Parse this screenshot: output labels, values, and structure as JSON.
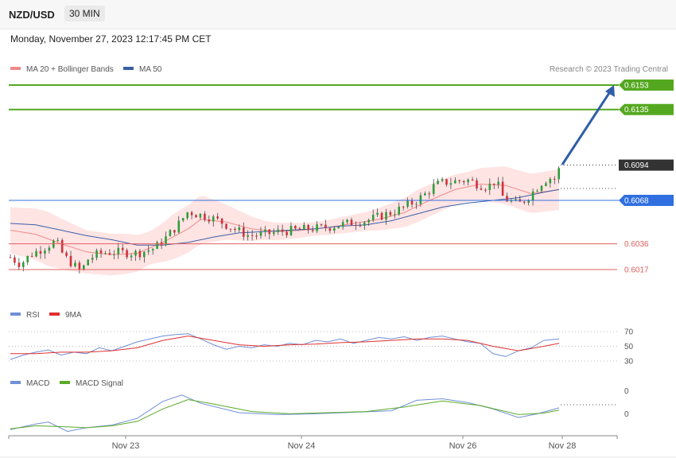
{
  "header": {
    "symbol": "NZD/USD",
    "timeframe": "30 MIN"
  },
  "datetime": "Monday, November 27, 2023 12:17:45 PM CET",
  "legend": {
    "ma20": "MA 20 + Bollinger Bands",
    "ma50": "MA 50",
    "rsi": "RSI",
    "rsi_ma": "9MA",
    "macd": "MACD",
    "macd_signal": "MACD Signal"
  },
  "credit": "Research © 2023 Trading Central",
  "colors": {
    "up": "#2e9e3a",
    "down": "#d0333a",
    "ma50": "#3a5fa8",
    "band": "#ffd9d9",
    "resistance": "#54a820",
    "pivot": "#2f6fe0",
    "support": "#e06060",
    "arrow": "#2f5ea8",
    "rsi": "#6f8fd8",
    "rsi_ma": "#e03030",
    "macd": "#6f8fd8",
    "macd_signal": "#5aaa28"
  },
  "chart_data": {
    "type": "candlestick",
    "title": "NZD/USD",
    "timeframe": "30 MIN",
    "x_tick_labels": [
      "Nov 23",
      "Nov 24",
      "Nov 26",
      "Nov 28"
    ],
    "y_range": [
      0.6005,
      0.616
    ],
    "last_price": 0.6094,
    "levels": [
      {
        "label": "0.6153",
        "value": 0.6153,
        "kind": "resistance"
      },
      {
        "label": "0.6135",
        "value": 0.6135,
        "kind": "resistance"
      },
      {
        "label": "0.6094",
        "value": 0.6094,
        "kind": "last"
      },
      {
        "label": "0.6068",
        "value": 0.6068,
        "kind": "pivot"
      },
      {
        "label": "0.6036",
        "value": 0.6036,
        "kind": "support"
      },
      {
        "label": "0.6017",
        "value": 0.6017,
        "kind": "support"
      }
    ],
    "price_path": [
      [
        0,
        0.6026
      ],
      [
        8,
        0.6021
      ],
      [
        16,
        0.6028
      ],
      [
        24,
        0.6032
      ],
      [
        30,
        0.6035
      ],
      [
        36,
        0.6038
      ],
      [
        42,
        0.6027
      ],
      [
        48,
        0.6022
      ],
      [
        56,
        0.6015
      ],
      [
        60,
        0.6024
      ],
      [
        66,
        0.6027
      ],
      [
        70,
        0.6029
      ],
      [
        80,
        0.603
      ],
      [
        100,
        0.6029
      ],
      [
        114,
        0.6033
      ],
      [
        122,
        0.604
      ],
      [
        132,
        0.605
      ],
      [
        140,
        0.606
      ],
      [
        146,
        0.6058
      ],
      [
        156,
        0.6056
      ],
      [
        166,
        0.6052
      ],
      [
        176,
        0.6047
      ],
      [
        188,
        0.6042
      ],
      [
        200,
        0.6043
      ],
      [
        212,
        0.6045
      ],
      [
        224,
        0.6046
      ],
      [
        236,
        0.6047
      ],
      [
        248,
        0.6048
      ],
      [
        260,
        0.605
      ],
      [
        270,
        0.6052
      ],
      [
        280,
        0.6053
      ],
      [
        290,
        0.6056
      ],
      [
        300,
        0.6059
      ],
      [
        310,
        0.6063
      ],
      [
        318,
        0.6067
      ],
      [
        326,
        0.6072
      ],
      [
        334,
        0.6079
      ],
      [
        340,
        0.6081
      ],
      [
        350,
        0.6082
      ],
      [
        360,
        0.6083
      ],
      [
        368,
        0.608
      ],
      [
        376,
        0.6078
      ],
      [
        382,
        0.6083
      ],
      [
        388,
        0.607
      ],
      [
        394,
        0.6067
      ],
      [
        400,
        0.6065
      ],
      [
        406,
        0.6069
      ],
      [
        412,
        0.6075
      ],
      [
        418,
        0.6081
      ],
      [
        424,
        0.6085
      ],
      [
        428,
        0.6083
      ],
      [
        432,
        0.6091
      ]
    ],
    "ma50_path": [
      [
        0,
        0.6051
      ],
      [
        20,
        0.605
      ],
      [
        40,
        0.6046
      ],
      [
        60,
        0.6042
      ],
      [
        80,
        0.6039
      ],
      [
        100,
        0.6035
      ],
      [
        120,
        0.6035
      ],
      [
        140,
        0.6037
      ],
      [
        160,
        0.6041
      ],
      [
        180,
        0.6044
      ],
      [
        200,
        0.6045
      ],
      [
        220,
        0.6046
      ],
      [
        240,
        0.6047
      ],
      [
        260,
        0.6049
      ],
      [
        280,
        0.605
      ],
      [
        300,
        0.6053
      ],
      [
        320,
        0.6058
      ],
      [
        340,
        0.6063
      ],
      [
        360,
        0.6066
      ],
      [
        380,
        0.6068
      ],
      [
        400,
        0.607
      ],
      [
        420,
        0.6074
      ],
      [
        432,
        0.6076
      ]
    ],
    "ma20_path": [
      [
        0,
        0.6046
      ],
      [
        20,
        0.6043
      ],
      [
        40,
        0.6036
      ],
      [
        60,
        0.603
      ],
      [
        80,
        0.6028
      ],
      [
        100,
        0.6029
      ],
      [
        120,
        0.6037
      ],
      [
        140,
        0.6047
      ],
      [
        150,
        0.6054
      ],
      [
        170,
        0.6052
      ],
      [
        190,
        0.6047
      ],
      [
        210,
        0.6045
      ],
      [
        230,
        0.6046
      ],
      [
        250,
        0.6048
      ],
      [
        270,
        0.6051
      ],
      [
        290,
        0.6054
      ],
      [
        310,
        0.6059
      ],
      [
        330,
        0.6068
      ],
      [
        350,
        0.6076
      ],
      [
        370,
        0.608
      ],
      [
        390,
        0.6079
      ],
      [
        410,
        0.6073
      ],
      [
        432,
        0.6076
      ]
    ],
    "band_width": [
      [
        0,
        0.0017
      ],
      [
        30,
        0.002
      ],
      [
        60,
        0.0016
      ],
      [
        90,
        0.0015
      ],
      [
        110,
        0.0012
      ],
      [
        130,
        0.0017
      ],
      [
        150,
        0.0018
      ],
      [
        170,
        0.0013
      ],
      [
        200,
        0.0007
      ],
      [
        240,
        0.0005
      ],
      [
        280,
        0.0007
      ],
      [
        320,
        0.0012
      ],
      [
        360,
        0.0011
      ],
      [
        390,
        0.0014
      ],
      [
        432,
        0.0015
      ]
    ],
    "rsi": {
      "levels": [
        70,
        50,
        30
      ],
      "series": [
        {
          "name": "RSI",
          "values": [
            [
              0,
              32
            ],
            [
              10,
              38
            ],
            [
              20,
              42
            ],
            [
              30,
              45
            ],
            [
              40,
              38
            ],
            [
              50,
              42
            ],
            [
              60,
              40
            ],
            [
              70,
              48
            ],
            [
              80,
              44
            ],
            [
              90,
              50
            ],
            [
              100,
              56
            ],
            [
              110,
              60
            ],
            [
              120,
              64
            ],
            [
              130,
              66
            ],
            [
              140,
              67
            ],
            [
              150,
              60
            ],
            [
              160,
              52
            ],
            [
              170,
              46
            ],
            [
              180,
              50
            ],
            [
              190,
              48
            ],
            [
              200,
              52
            ],
            [
              210,
              50
            ],
            [
              220,
              54
            ],
            [
              230,
              52
            ],
            [
              240,
              58
            ],
            [
              250,
              56
            ],
            [
              260,
              60
            ],
            [
              270,
              54
            ],
            [
              280,
              58
            ],
            [
              290,
              62
            ],
            [
              300,
              60
            ],
            [
              310,
              63
            ],
            [
              320,
              58
            ],
            [
              330,
              62
            ],
            [
              340,
              64
            ],
            [
              350,
              60
            ],
            [
              360,
              56
            ],
            [
              370,
              54
            ],
            [
              380,
              40
            ],
            [
              390,
              36
            ],
            [
              400,
              44
            ],
            [
              410,
              48
            ],
            [
              420,
              58
            ],
            [
              432,
              60
            ]
          ]
        },
        {
          "name": "9MA",
          "values": [
            [
              0,
              40
            ],
            [
              20,
              40
            ],
            [
              40,
              42
            ],
            [
              60,
              42
            ],
            [
              80,
              44
            ],
            [
              100,
              48
            ],
            [
              120,
              58
            ],
            [
              140,
              64
            ],
            [
              160,
              58
            ],
            [
              180,
              52
            ],
            [
              200,
              50
            ],
            [
              220,
              52
            ],
            [
              240,
              53
            ],
            [
              260,
              55
            ],
            [
              280,
              56
            ],
            [
              300,
              58
            ],
            [
              320,
              60
            ],
            [
              340,
              60
            ],
            [
              360,
              58
            ],
            [
              380,
              50
            ],
            [
              400,
              44
            ],
            [
              420,
              50
            ],
            [
              432,
              54
            ]
          ]
        }
      ]
    },
    "macd": {
      "series": [
        {
          "name": "MACD",
          "values": [
            [
              0,
              0.0
            ],
            [
              20,
              0.15
            ],
            [
              30,
              0.2
            ],
            [
              45,
              -0.05
            ],
            [
              60,
              0.05
            ],
            [
              80,
              0.12
            ],
            [
              100,
              0.3
            ],
            [
              120,
              0.75
            ],
            [
              135,
              0.92
            ],
            [
              150,
              0.7
            ],
            [
              180,
              0.45
            ],
            [
              210,
              0.4
            ],
            [
              240,
              0.42
            ],
            [
              270,
              0.46
            ],
            [
              300,
              0.5
            ],
            [
              320,
              0.78
            ],
            [
              340,
              0.82
            ],
            [
              360,
              0.72
            ],
            [
              380,
              0.55
            ],
            [
              400,
              0.32
            ],
            [
              415,
              0.42
            ],
            [
              432,
              0.58
            ]
          ]
        },
        {
          "name": "MACD Signal",
          "values": [
            [
              0,
              0.02
            ],
            [
              20,
              0.1
            ],
            [
              40,
              0.08
            ],
            [
              60,
              0.05
            ],
            [
              80,
              0.1
            ],
            [
              100,
              0.22
            ],
            [
              120,
              0.55
            ],
            [
              140,
              0.8
            ],
            [
              160,
              0.68
            ],
            [
              190,
              0.48
            ],
            [
              220,
              0.42
            ],
            [
              250,
              0.45
            ],
            [
              280,
              0.48
            ],
            [
              310,
              0.6
            ],
            [
              340,
              0.76
            ],
            [
              370,
              0.64
            ],
            [
              400,
              0.4
            ],
            [
              420,
              0.44
            ],
            [
              432,
              0.52
            ]
          ]
        }
      ]
    }
  }
}
